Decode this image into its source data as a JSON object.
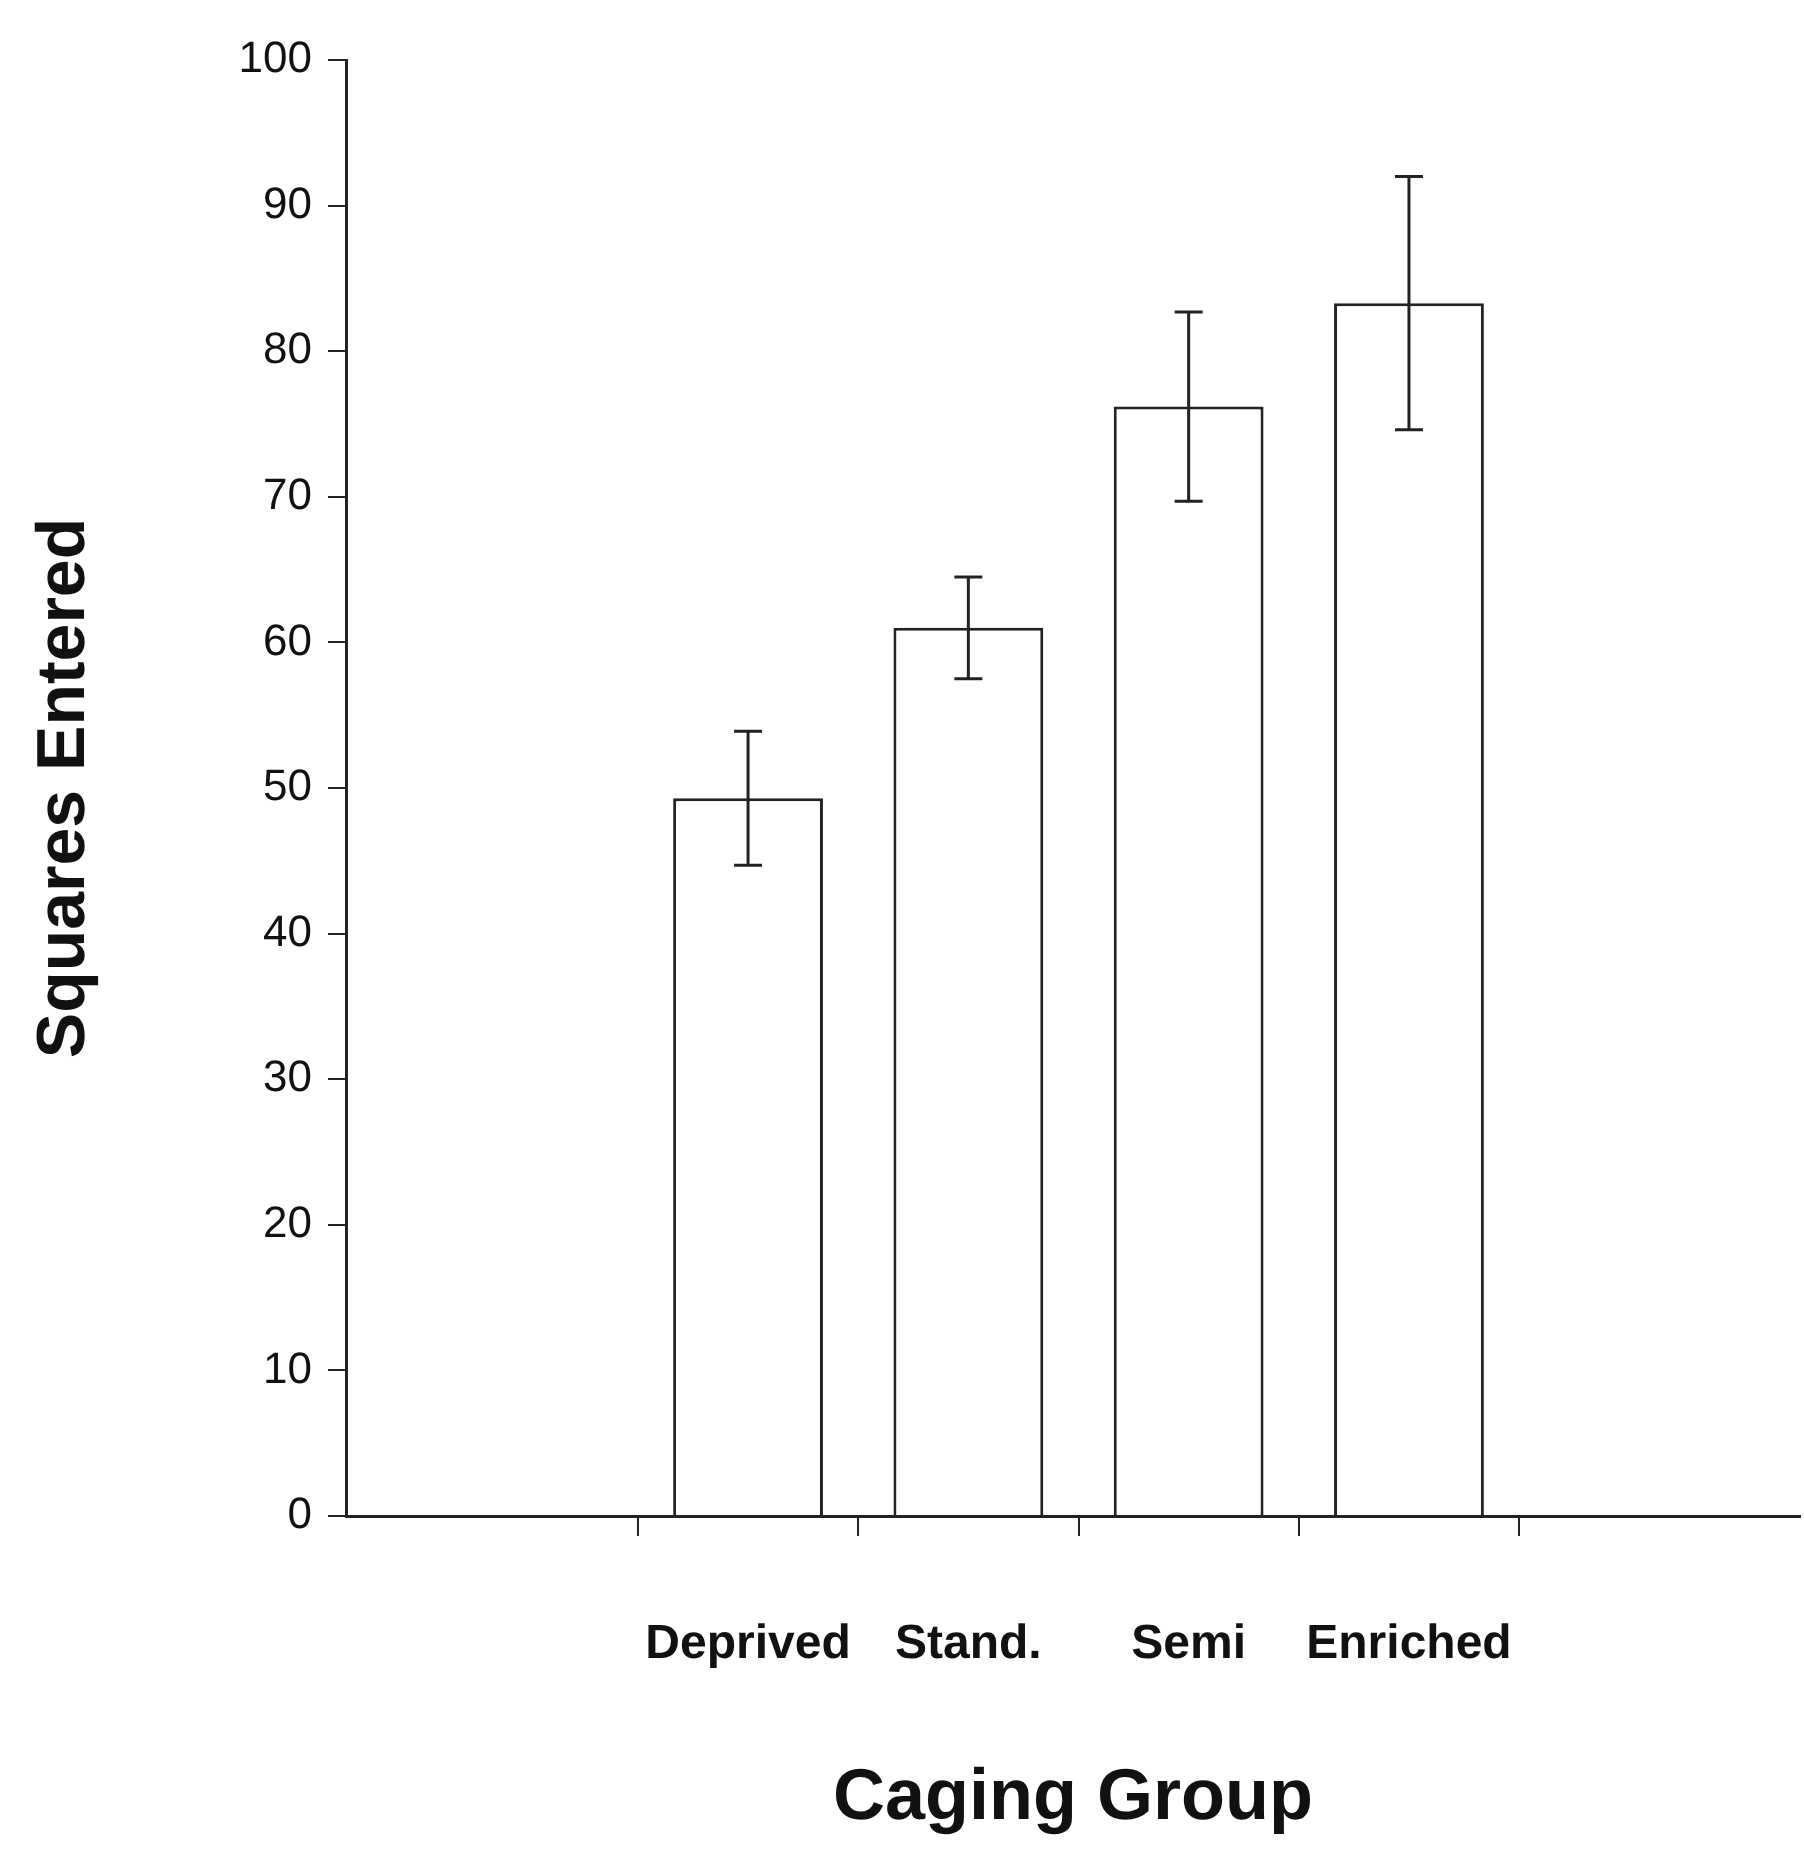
{
  "chart_data": {
    "type": "bar",
    "xlabel": "Caging Group",
    "ylabel": "Squares Entered",
    "categories": [
      "Deprived",
      "Stand.",
      "Semi",
      "Enriched"
    ],
    "values": [
      49.3,
      61,
      76.2,
      83.3
    ],
    "errors": [
      4.6,
      3.5,
      6.5,
      8.7
    ],
    "color": "#ffffff",
    "ylim": [
      0,
      100
    ],
    "yticks": [
      0,
      10,
      20,
      30,
      40,
      50,
      60,
      70,
      80,
      90,
      100
    ],
    "grid": false,
    "legend": false
  }
}
